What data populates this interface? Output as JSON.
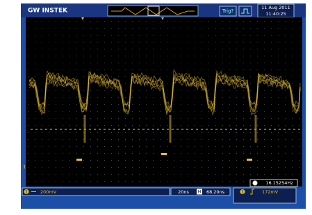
{
  "header": {
    "brand": "GW INSTEK",
    "trigger_status": "Trig?",
    "date": "11 Aug 2011",
    "time": "11:40:25"
  },
  "screen": {
    "channel_marker": "1",
    "frequency": "16.15254Hz"
  },
  "footer": {
    "channel": "1",
    "volts_per_div": "200mV",
    "timebase": "20ns",
    "horizontal_marker": "H",
    "horizontal_position": "68.20ns",
    "trigger_channel": "1",
    "trigger_level": "172mV"
  }
}
